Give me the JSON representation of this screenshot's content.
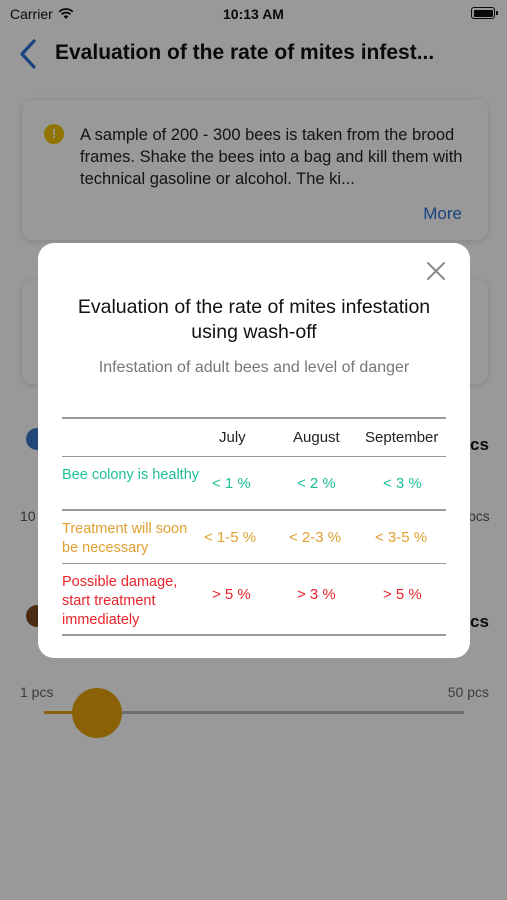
{
  "status_bar": {
    "carrier": "Carrier",
    "time": "10:13 AM"
  },
  "nav": {
    "title": "Evaluation of the rate of mites infest..."
  },
  "info_card": {
    "text": "A sample of 200 - 300 bees is taken from the brood frames. Shake the bees into a bag and kill them with technical gasoline or alcohol. The ki...",
    "more": "More"
  },
  "rows": {
    "row1_left": "10",
    "row1_right": "pcs",
    "row1_unit": "cs",
    "row2_unit": "cs"
  },
  "slider": {
    "min_label": "1 pcs",
    "max_label": "50 pcs",
    "value_fraction": 0.0
  },
  "colors": {
    "accent": "#e8a20a",
    "link": "#2a6fd6",
    "healthy": "#1dbf96",
    "warning": "#e0a030",
    "danger": "#e8242c"
  },
  "modal": {
    "title": "Evaluation of the rate of mites infestation using wash-off",
    "subtitle": "Infestation of adult bees and level of danger",
    "columns": [
      "July",
      "August",
      "September"
    ],
    "rows": [
      {
        "label": "Bee colony is healthy",
        "values": [
          "< 1 %",
          "< 2 %",
          "< 3 %"
        ],
        "level": "healthy"
      },
      {
        "label": "Treatment will soon be necessary",
        "values": [
          "< 1-5 %",
          "< 2-3 %",
          "< 3-5 %"
        ],
        "level": "warning"
      },
      {
        "label": "Possible damage, start treatment immediately",
        "values": [
          "> 5 %",
          "> 3 %",
          "> 5 %"
        ],
        "level": "danger"
      }
    ]
  }
}
